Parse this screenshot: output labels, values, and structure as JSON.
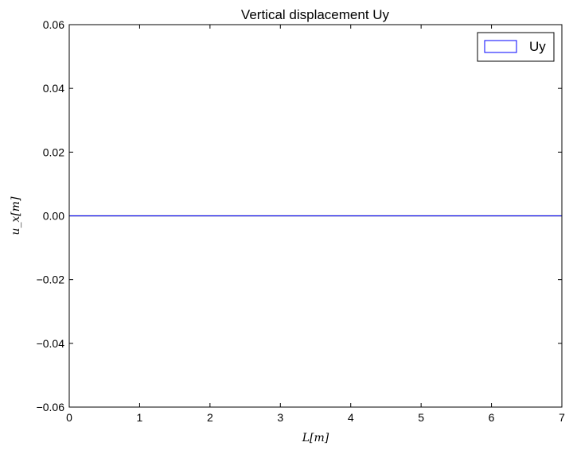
{
  "chart_data": {
    "type": "area",
    "title": "Vertical displacement Uy",
    "xlabel": "L[m]",
    "ylabel": "u_x[m]",
    "xlim": [
      0,
      7
    ],
    "ylim": [
      -0.06,
      0.06
    ],
    "x_ticks": [
      0,
      1,
      2,
      3,
      4,
      5,
      6,
      7
    ],
    "x_tick_labels": [
      "0",
      "1",
      "2",
      "3",
      "4",
      "5",
      "6",
      "7"
    ],
    "y_ticks": [
      -0.06,
      -0.04,
      -0.02,
      0.0,
      0.02,
      0.04,
      0.06
    ],
    "y_tick_labels": [
      "−0.06",
      "−0.04",
      "−0.02",
      "0.00",
      "0.02",
      "0.04",
      "0.06"
    ],
    "legend_position": "top-right",
    "grid": false,
    "series": [
      {
        "name": "Uy",
        "color": "#0000ff",
        "x": [
          0,
          7
        ],
        "values": [
          0,
          0
        ]
      }
    ]
  }
}
